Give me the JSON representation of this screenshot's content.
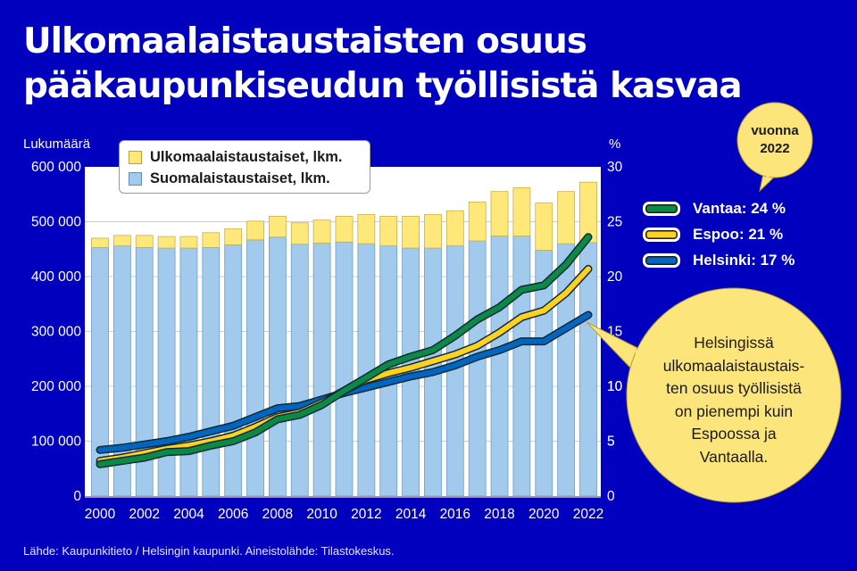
{
  "title": {
    "line1": "Ulkomaalaistaustaisten osuus",
    "line2": "pääkaupunkiseudun työllisistä kasvaa"
  },
  "axes": {
    "left_label": "Lukumäärä",
    "right_label": "%",
    "left_ticks": [
      "0",
      "100 000",
      "200 000",
      "300 000",
      "400 000",
      "500 000",
      "600 000"
    ],
    "right_ticks": [
      "0",
      "5",
      "10",
      "15",
      "20",
      "25",
      "30"
    ],
    "x_ticks": [
      "2000",
      "2002",
      "2004",
      "2006",
      "2008",
      "2010",
      "2012",
      "2014",
      "2016",
      "2018",
      "2020",
      "2022"
    ]
  },
  "bar_legend": {
    "foreign": "Ulkomaalaistaustaiset, lkm.",
    "finnish": "Suomalaistaustaiset, lkm."
  },
  "line_legend": {
    "vantaa": "Vantaa: 24 %",
    "espoo": "Espoo: 21 %",
    "helsinki": "Helsinki: 17 %"
  },
  "callouts": {
    "year_bubble": [
      "vuonna",
      "2022"
    ],
    "note": [
      "Helsingissä",
      "ulkomaalaistaustais-",
      "ten osuus työllisistä",
      "on pienempi kuin",
      "Espoossa ja",
      "Vantaalla."
    ]
  },
  "footer": "Lähde: Kaupunkitieto / Helsingin kaupunki. Aineistolähde: Tilastokeskus.",
  "colors": {
    "background": "#0000BE",
    "foreign_bar": "#FFE87A",
    "finnish_bar": "#A2CAEC",
    "vantaa": "#0A8A45",
    "espoo": "#FFD21E",
    "helsinki": "#0066C0",
    "bubble": "#FCE57A"
  },
  "chart_data": {
    "type": "bar+line",
    "title": "Ulkomaalaistaustaisten osuus pääkaupunkiseudun työllisistä kasvaa",
    "xlabel": "",
    "ylabel": "Lukumäärä",
    "ylabel_right": "%",
    "ylim": [
      0,
      600000
    ],
    "ylim_right": [
      0,
      30
    ],
    "grid": true,
    "legend_position": "top-left (bars), right (lines)",
    "categories": [
      2000,
      2001,
      2002,
      2003,
      2004,
      2005,
      2006,
      2007,
      2008,
      2009,
      2010,
      2011,
      2012,
      2013,
      2014,
      2015,
      2016,
      2017,
      2018,
      2019,
      2020,
      2021,
      2022
    ],
    "series": [
      {
        "name": "Suomalaistaustaiset, lkm.",
        "type": "stacked-bar",
        "axis": "left",
        "values": [
          453000,
          456000,
          453000,
          452000,
          452000,
          453000,
          458000,
          467000,
          472000,
          459000,
          461000,
          463000,
          460000,
          456000,
          452000,
          452000,
          456000,
          465000,
          474000,
          474000,
          448000,
          460000,
          462000
        ]
      },
      {
        "name": "Ulkomaalaistaustaiset, lkm.",
        "type": "stacked-bar",
        "axis": "left",
        "values": [
          17000,
          19000,
          22000,
          21000,
          21000,
          27000,
          29000,
          34000,
          38000,
          39000,
          42000,
          47000,
          53000,
          54000,
          58000,
          61000,
          64000,
          71000,
          81000,
          88000,
          86000,
          95000,
          110000
        ]
      },
      {
        "name": "Vantaa",
        "type": "line",
        "axis": "right",
        "values": [
          2.9,
          3.2,
          3.5,
          4.0,
          4.1,
          4.6,
          5.0,
          5.8,
          7.0,
          7.4,
          8.3,
          9.6,
          10.8,
          12.0,
          12.7,
          13.3,
          14.6,
          16.1,
          17.2,
          18.8,
          19.2,
          21.1,
          23.6
        ]
      },
      {
        "name": "Espoo",
        "type": "line",
        "axis": "right",
        "values": [
          3.2,
          3.5,
          3.9,
          4.3,
          4.6,
          5.0,
          5.5,
          6.3,
          7.2,
          7.6,
          8.5,
          9.6,
          10.6,
          11.2,
          11.7,
          12.3,
          12.9,
          13.7,
          14.9,
          16.3,
          16.9,
          18.5,
          20.7
        ]
      },
      {
        "name": "Helsinki",
        "type": "line",
        "axis": "right",
        "values": [
          4.2,
          4.4,
          4.7,
          5.0,
          5.4,
          5.9,
          6.4,
          7.2,
          8.0,
          8.2,
          8.8,
          9.4,
          9.9,
          10.4,
          10.9,
          11.3,
          11.9,
          12.7,
          13.3,
          14.1,
          14.1,
          15.3,
          16.5
        ]
      }
    ],
    "annotations": [
      "vuonna 2022: Vantaa 24 %, Espoo 21 %, Helsinki 17 %",
      "Helsingissä ulkomaalaistaustaisten osuus työllisistä on pienempi kuin Espoossa ja Vantaalla."
    ]
  }
}
